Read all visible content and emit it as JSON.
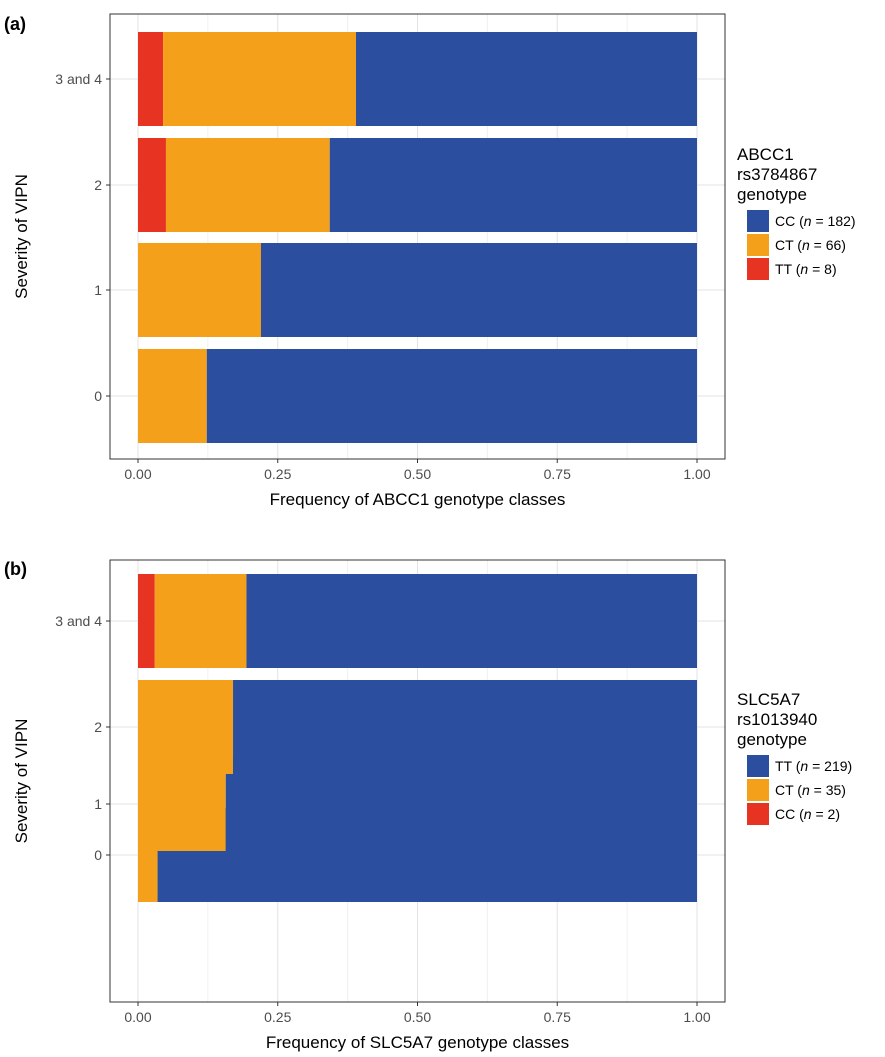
{
  "chart_data": [
    {
      "panel_label": "(a)",
      "type": "bar",
      "orientation": "horizontal",
      "stacked": true,
      "categories": [
        "0",
        "1",
        "2",
        "3 and 4"
      ],
      "series": [
        {
          "name": "TT",
          "n": "8",
          "color": "#e63322",
          "values": [
            0.0,
            0.0,
            0.05,
            0.045
          ]
        },
        {
          "name": "CT",
          "n": "66",
          "color": "#f5a01a",
          "values": [
            0.123,
            0.22,
            0.293,
            0.345
          ]
        },
        {
          "name": "CC",
          "n": "182",
          "color": "#2b4e9f",
          "values": [
            0.877,
            0.78,
            0.657,
            0.61
          ]
        }
      ],
      "stack_order": [
        "TT",
        "CT",
        "CC"
      ],
      "legend_order": [
        "CC",
        "CT",
        "TT"
      ],
      "legend_title": [
        "ABCC1",
        "rs3784867",
        "genotype"
      ],
      "xlabel": "Frequency of ABCC1 genotype classes",
      "ylabel": "Severity of VIPN",
      "xticks": [
        "0.00",
        "0.25",
        "0.50",
        "0.75",
        "1.00"
      ],
      "xlim": [
        0,
        1
      ],
      "grid": true,
      "legend_position": "right"
    },
    {
      "panel_label": "(b)",
      "type": "bar",
      "orientation": "horizontal",
      "stacked": true,
      "categories": [
        "0",
        "1",
        "2",
        "3 and 4"
      ],
      "series": [
        {
          "name": "CC",
          "n": "2",
          "color": "#e63322",
          "values": [
            0.0,
            0.0,
            0.0,
            0.03
          ]
        },
        {
          "name": "CT",
          "n": "35",
          "color": "#f5a01a",
          "values": [
            0.035,
            0.157,
            0.17,
            0.164
          ]
        },
        {
          "name": "TT",
          "n": "219",
          "color": "#2b4e9f",
          "values": [
            0.965,
            0.843,
            0.83,
            0.806
          ]
        }
      ],
      "stack_order": [
        "CC",
        "CT",
        "TT"
      ],
      "legend_order": [
        "TT",
        "CT",
        "CC"
      ],
      "legend_title": [
        "SLC5A7",
        "rs1013940",
        "genotype"
      ],
      "xlabel": "Frequency of SLC5A7 genotype classes",
      "ylabel": "Severity of VIPN",
      "xticks": [
        "0.00",
        "0.25",
        "0.50",
        "0.75",
        "1.00"
      ],
      "xlim": [
        0,
        1
      ],
      "grid": true,
      "legend_position": "right"
    }
  ]
}
